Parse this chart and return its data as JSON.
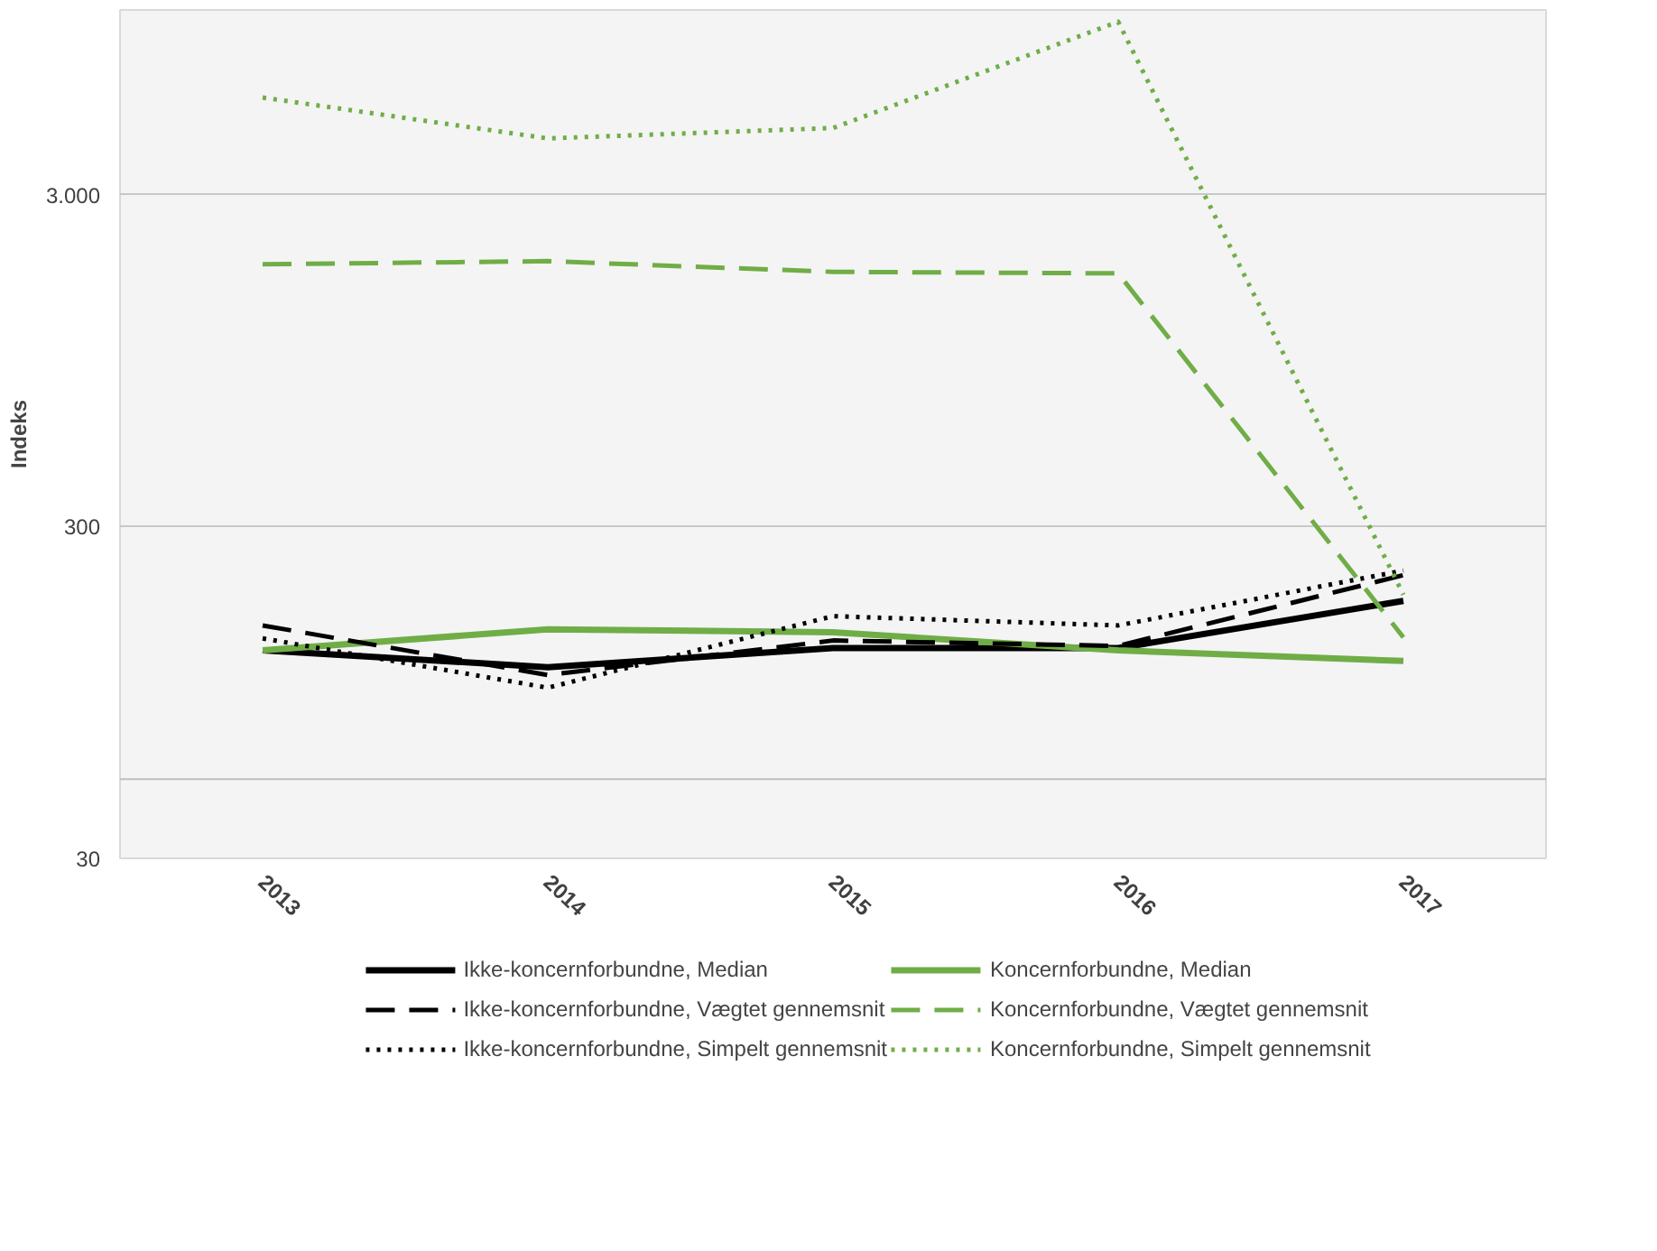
{
  "chart_data": {
    "type": "line",
    "ylabel": "Indeks",
    "categories": [
      "2013",
      "2014",
      "2015",
      "2016",
      "2017"
    ],
    "log": true,
    "ylim": [
      30,
      10800
    ],
    "yticks": [
      30,
      300,
      {
        "value": 3000,
        "label": "3.000"
      }
    ],
    "grid": "y",
    "legend": "bottom",
    "ref_lines": [
      {
        "axis": "y",
        "value": 52,
        "label": null,
        "color": "#bfbfbf"
      }
    ],
    "series": [
      {
        "name": "Ikke-koncernforbundne, Median",
        "color": "#000000",
        "line_style": "solid",
        "values": [
          127,
          113,
          129,
          129,
          179
        ]
      },
      {
        "name": "Koncernforbundne, Median",
        "color": "#70ad47",
        "line_style": "solid",
        "values": [
          127,
          147,
          144,
          127,
          118
        ]
      },
      {
        "name": "Ikke-koncernforbundne, Vægtet gennemsnit",
        "color": "#000000",
        "line_style": "dashed",
        "values": [
          151,
          107,
          136,
          131,
          214
        ]
      },
      {
        "name": "Koncernforbundne, Vægtet gennemsnit",
        "color": "#70ad47",
        "line_style": "dashed",
        "values": [
          1850,
          1890,
          1755,
          1737,
          139
        ]
      },
      {
        "name": "Ikke-koncernforbundne, Simpelt gennemsnit",
        "color": "#000000",
        "line_style": "dotted",
        "values": [
          138,
          98,
          161,
          151,
          221
        ]
      },
      {
        "name": "Koncernforbundne, Simpelt gennemsnit",
        "color": "#70ad47",
        "line_style": "dotted",
        "values": [
          5880,
          4430,
          4760,
          9950,
          187
        ]
      }
    ]
  }
}
